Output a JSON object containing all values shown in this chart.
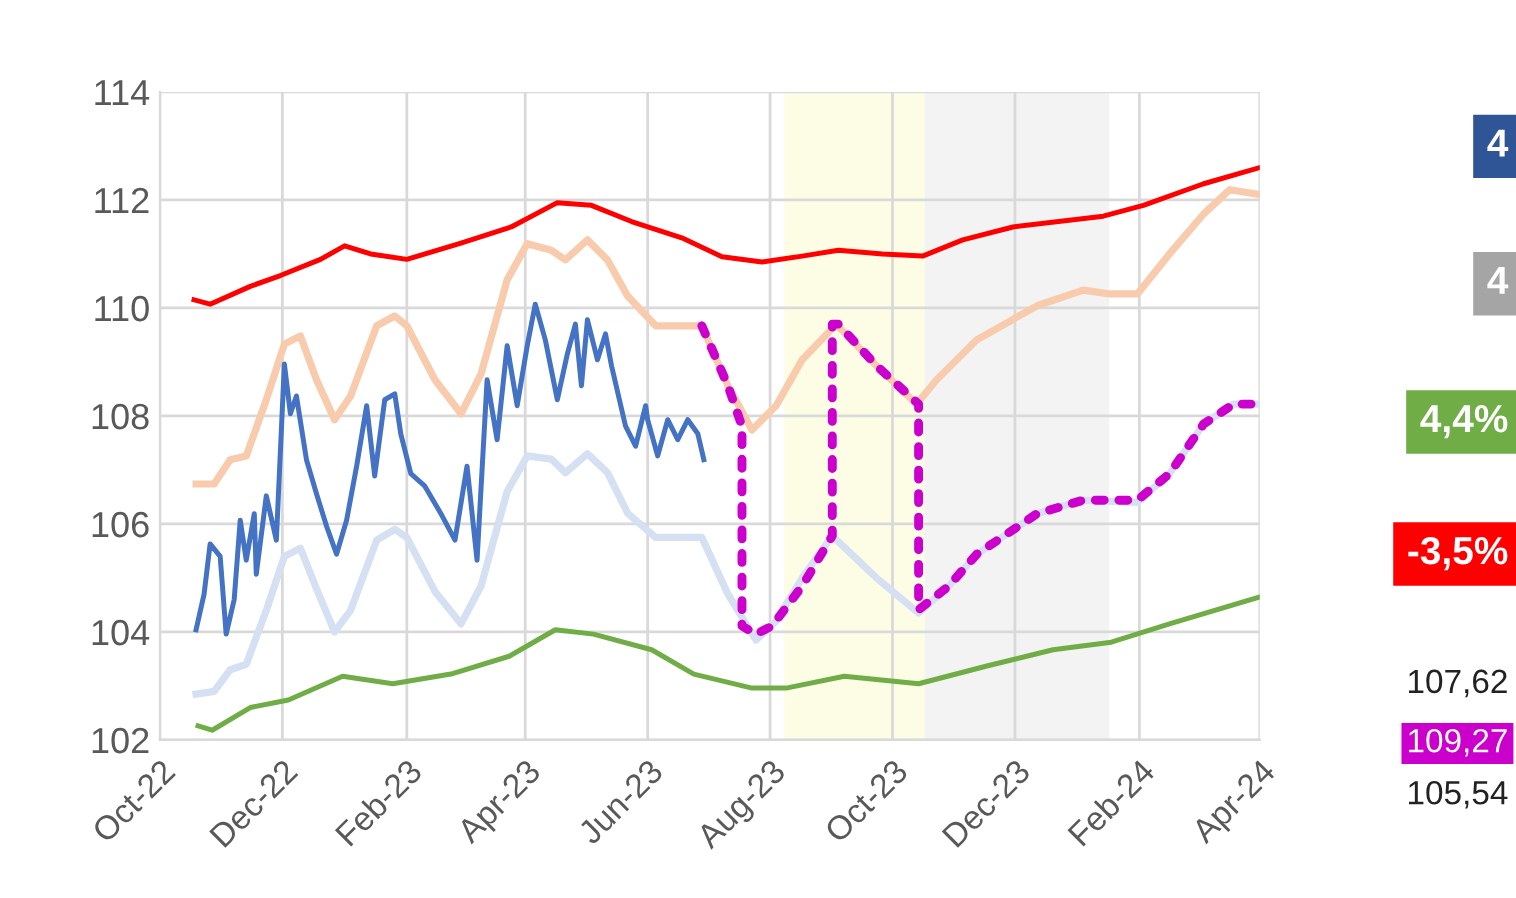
{
  "chart_data": {
    "type": "line",
    "xlim": [
      "2022-10-01",
      "2024-04-01"
    ],
    "xticks": [
      {
        "value": "2022-10-01",
        "label": "Oct-22"
      },
      {
        "value": "2022-12-01",
        "label": "Dec-22"
      },
      {
        "value": "2023-02-01",
        "label": "Feb-23"
      },
      {
        "value": "2023-04-01",
        "label": "Apr-23"
      },
      {
        "value": "2023-06-01",
        "label": "Jun-23"
      },
      {
        "value": "2023-08-01",
        "label": "Aug-23"
      },
      {
        "value": "2023-10-01",
        "label": "Oct-23"
      },
      {
        "value": "2023-12-01",
        "label": "Dec-23"
      },
      {
        "value": "2024-02-01",
        "label": "Feb-24"
      },
      {
        "value": "2024-04-01",
        "label": "Apr-24"
      }
    ],
    "ylim": [
      102,
      114
    ],
    "yticks": [
      102,
      104,
      106,
      108,
      110,
      112,
      114
    ],
    "grid": true,
    "legend": false,
    "marker": "none",
    "bands": [
      {
        "axis": "x",
        "from": "2023-08-08",
        "to": "2023-10-17",
        "color": "#fdfde6"
      },
      {
        "axis": "x",
        "from": "2023-10-17",
        "to": "2024-01-17",
        "color": "#f3f3f3"
      }
    ],
    "series": [
      {
        "color": "#ff0000",
        "x": [
          "2022-10-18",
          "2022-10-26",
          "2022-11-15",
          "2022-11-30",
          "2022-12-20",
          "2023-01-01",
          "2023-01-14",
          "2023-02-01",
          "2023-02-28",
          "2023-03-25",
          "2023-04-17",
          "2023-05-04",
          "2023-05-24",
          "2023-06-18",
          "2023-07-08",
          "2023-07-28",
          "2023-08-17",
          "2023-09-04",
          "2023-09-26",
          "2023-10-16",
          "2023-11-05",
          "2023-11-30",
          "2024-01-14",
          "2024-02-03",
          "2024-03-04",
          "2024-04-01"
        ],
        "values": [
          110.15,
          110.07,
          110.4,
          110.6,
          110.9,
          111.15,
          111.0,
          110.9,
          111.2,
          111.5,
          111.95,
          111.9,
          111.6,
          111.3,
          110.95,
          110.85,
          110.96,
          111.07,
          111.0,
          110.96,
          111.26,
          111.5,
          111.7,
          111.9,
          112.3,
          112.6
        ]
      },
      {
        "color": "#70ad47",
        "x": [
          "2022-10-20",
          "2022-10-27",
          "2022-11-15",
          "2022-12-04",
          "2022-12-31",
          "2023-01-25",
          "2023-02-23",
          "2023-03-24",
          "2023-04-16",
          "2023-05-05",
          "2023-06-03",
          "2023-06-24",
          "2023-07-23",
          "2023-08-09",
          "2023-09-07",
          "2023-10-14",
          "2023-11-17",
          "2023-12-20",
          "2024-01-18",
          "2024-02-16",
          "2024-04-01"
        ],
        "values": [
          102.26,
          102.18,
          102.6,
          102.74,
          103.18,
          103.04,
          103.22,
          103.55,
          104.04,
          103.96,
          103.67,
          103.22,
          102.96,
          102.96,
          103.18,
          103.04,
          103.37,
          103.67,
          103.81,
          104.15,
          104.65
        ]
      },
      {
        "color": "#f8cbad",
        "x": [
          "2022-10-19",
          "2022-10-28",
          "2022-11-05",
          "2022-11-13",
          "2022-11-23",
          "2022-12-02",
          "2022-12-10",
          "2022-12-18",
          "2022-12-27",
          "2023-01-04",
          "2023-01-17",
          "2023-01-26",
          "2023-02-01",
          "2023-02-15",
          "2023-02-28",
          "2023-03-10",
          "2023-03-23",
          "2023-04-02",
          "2023-04-14",
          "2023-04-21",
          "2023-05-02",
          "2023-05-12",
          "2023-05-22",
          "2023-06-05",
          "2023-06-28",
          "2023-07-11",
          "2023-07-23",
          "2023-08-04",
          "2023-08-17",
          "2023-09-03",
          "2023-09-23",
          "2023-10-13",
          "2023-10-23",
          "2023-11-12",
          "2023-12-12",
          "2024-01-04",
          "2024-01-17",
          "2024-01-31",
          "2024-02-16",
          "2024-03-04",
          "2024-03-17",
          "2024-04-01"
        ],
        "values": [
          106.74,
          106.74,
          107.19,
          107.26,
          108.3,
          109.33,
          109.48,
          108.67,
          107.93,
          108.37,
          109.67,
          109.85,
          109.67,
          108.67,
          108.04,
          108.78,
          110.52,
          111.19,
          111.07,
          110.89,
          111.26,
          110.89,
          110.22,
          109.67,
          109.67,
          108.56,
          107.74,
          108.19,
          109.04,
          109.7,
          108.93,
          108.22,
          108.67,
          109.41,
          110.04,
          110.33,
          110.26,
          110.26,
          111.0,
          111.74,
          112.19,
          112.1
        ]
      },
      {
        "color": "#d6e0f3",
        "x": [
          "2022-10-19",
          "2022-10-28",
          "2022-11-05",
          "2022-11-13",
          "2022-11-23",
          "2022-12-02",
          "2022-12-10",
          "2022-12-18",
          "2022-12-27",
          "2023-01-04",
          "2023-01-17",
          "2023-01-26",
          "2023-02-01",
          "2023-02-15",
          "2023-02-28",
          "2023-03-10",
          "2023-03-23",
          "2023-04-02",
          "2023-04-14",
          "2023-04-21",
          "2023-05-02",
          "2023-05-12",
          "2023-05-22",
          "2023-06-05",
          "2023-06-28",
          "2023-07-11",
          "2023-07-25",
          "2023-08-04",
          "2023-08-17",
          "2023-09-01",
          "2023-09-23",
          "2023-10-14",
          "2023-10-29",
          "2023-11-12",
          "2023-12-12",
          "2024-01-04",
          "2024-01-31",
          "2024-02-16",
          "2024-03-04",
          "2024-03-19",
          "2024-04-01"
        ],
        "values": [
          102.85,
          102.9,
          103.3,
          103.4,
          104.4,
          105.4,
          105.55,
          104.8,
          104.0,
          104.4,
          105.7,
          105.9,
          105.75,
          104.75,
          104.15,
          104.85,
          106.6,
          107.26,
          107.2,
          106.95,
          107.3,
          106.95,
          106.2,
          105.75,
          105.75,
          104.7,
          103.85,
          104.2,
          105.0,
          105.78,
          105.0,
          104.35,
          104.85,
          105.44,
          106.19,
          106.44,
          106.4,
          106.93,
          107.85,
          108.22,
          108.22
        ]
      },
      {
        "color": "#4472c4",
        "x": [
          "2022-10-19",
          "2022-10-23",
          "2022-10-26",
          "2022-10-31",
          "2022-11-03",
          "2022-11-07",
          "2022-11-10",
          "2022-11-13",
          "2022-11-17",
          "2022-11-18",
          "2022-11-23",
          "2022-11-28",
          "2022-12-02",
          "2022-12-05",
          "2022-12-08",
          "2022-12-13",
          "2022-12-18",
          "2022-12-23",
          "2022-12-28",
          "2023-01-02",
          "2023-01-07",
          "2023-01-12",
          "2023-01-16",
          "2023-01-21",
          "2023-01-26",
          "2023-01-29",
          "2023-02-03",
          "2023-02-10",
          "2023-02-18",
          "2023-02-25",
          "2023-03-03",
          "2023-03-08",
          "2023-03-13",
          "2023-03-18",
          "2023-03-23",
          "2023-03-28",
          "2023-04-02",
          "2023-04-06",
          "2023-04-11",
          "2023-04-17",
          "2023-04-22",
          "2023-04-26",
          "2023-04-29",
          "2023-05-02",
          "2023-05-07",
          "2023-05-11",
          "2023-05-14",
          "2023-05-21",
          "2023-05-26",
          "2023-05-31",
          "2023-06-01",
          "2023-06-06",
          "2023-06-11",
          "2023-06-16",
          "2023-06-21",
          "2023-06-26",
          "2023-06-29"
        ],
        "values": [
          104.04,
          104.7,
          105.63,
          105.4,
          103.96,
          104.6,
          106.07,
          105.33,
          106.19,
          105.07,
          106.52,
          105.7,
          108.96,
          108.04,
          108.37,
          107.19,
          106.56,
          105.96,
          105.44,
          106.07,
          107.07,
          108.19,
          106.89,
          108.3,
          108.41,
          107.67,
          106.93,
          106.7,
          106.19,
          105.7,
          107.07,
          105.33,
          108.67,
          107.56,
          109.3,
          108.19,
          109.3,
          110.07,
          109.41,
          108.3,
          109.15,
          109.7,
          108.56,
          109.78,
          109.04,
          109.52,
          108.93,
          107.81,
          107.44,
          108.19,
          107.93,
          107.26,
          107.93,
          107.56,
          107.93,
          107.67,
          107.19
        ]
      },
      {
        "color": "#cc00cc",
        "line_style": "dotted",
        "x": [
          "2023-06-28",
          "2023-07-11",
          "2023-07-18",
          "2023-07-18",
          "2023-07-25",
          "2023-08-02",
          "2023-08-17",
          "2023-09-01",
          "2023-09-01",
          "2023-09-04",
          "2023-09-23",
          "2023-10-14",
          "2023-10-14",
          "2023-10-29",
          "2023-11-12",
          "2023-12-12",
          "2024-01-04",
          "2024-01-31",
          "2024-02-16",
          "2024-03-04",
          "2024-03-19",
          "2024-04-01"
        ],
        "values": [
          109.67,
          108.56,
          107.81,
          104.11,
          103.96,
          104.11,
          104.85,
          105.78,
          109.7,
          109.7,
          108.93,
          108.22,
          104.41,
          104.85,
          105.44,
          106.19,
          106.44,
          106.44,
          106.93,
          107.85,
          108.22,
          108.22
        ]
      }
    ],
    "annotations": [
      "4",
      "4",
      "4,4%",
      "-3,5%",
      "107,62",
      "109,27",
      "105,54"
    ]
  }
}
